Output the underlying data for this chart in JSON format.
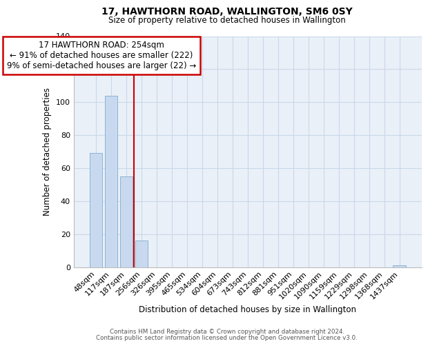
{
  "title": "17, HAWTHORN ROAD, WALLINGTON, SM6 0SY",
  "subtitle": "Size of property relative to detached houses in Wallington",
  "xlabel": "Distribution of detached houses by size in Wallington",
  "ylabel": "Number of detached properties",
  "bar_labels": [
    "48sqm",
    "117sqm",
    "187sqm",
    "256sqm",
    "326sqm",
    "395sqm",
    "465sqm",
    "534sqm",
    "604sqm",
    "673sqm",
    "743sqm",
    "812sqm",
    "881sqm",
    "951sqm",
    "1020sqm",
    "1090sqm",
    "1159sqm",
    "1229sqm",
    "1298sqm",
    "1368sqm",
    "1437sqm"
  ],
  "bar_values": [
    69,
    104,
    55,
    16,
    0,
    0,
    0,
    0,
    0,
    0,
    0,
    0,
    0,
    0,
    0,
    0,
    0,
    0,
    0,
    0,
    1
  ],
  "bar_color": "#c8d9ef",
  "bar_edge_color": "#8ab3d4",
  "vline_color": "#cc0000",
  "annotation_line1": "17 HAWTHORN ROAD: 254sqm",
  "annotation_line2": "← 91% of detached houses are smaller (222)",
  "annotation_line3": "9% of semi-detached houses are larger (22) →",
  "annotation_box_color": "#cc0000",
  "annotation_box_facecolor": "white",
  "ylim": [
    0,
    140
  ],
  "yticks": [
    0,
    20,
    40,
    60,
    80,
    100,
    120,
    140
  ],
  "grid_color": "#c8d8e8",
  "bg_color": "#eaf0f8",
  "footer_line1": "Contains HM Land Registry data © Crown copyright and database right 2024.",
  "footer_line2": "Contains public sector information licensed under the Open Government Licence v3.0."
}
